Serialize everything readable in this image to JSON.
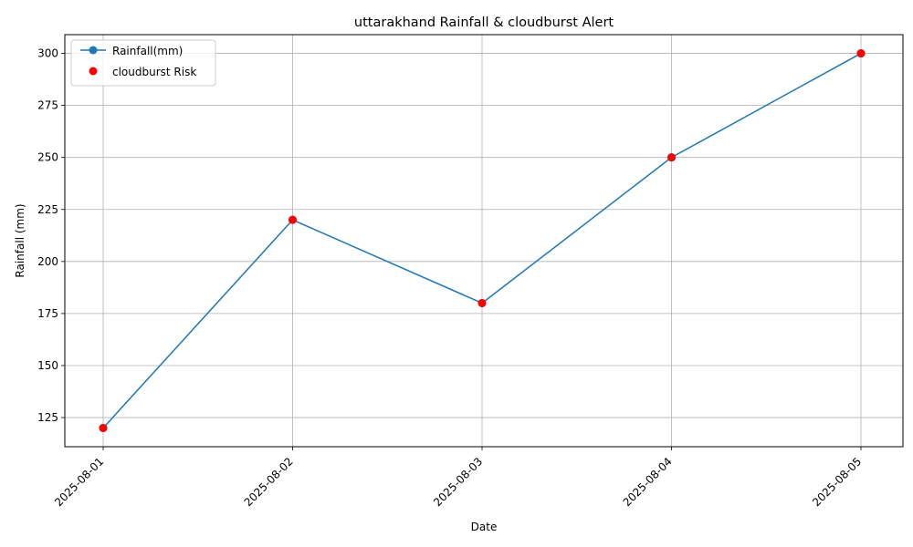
{
  "chart_data": {
    "type": "line",
    "title": "uttarakhand Rainfall & cloudburst Alert",
    "xlabel": "Date",
    "ylabel": "Rainfall (mm)",
    "categories": [
      "2025-08-01",
      "2025-08-02",
      "2025-08-03",
      "2025-08-04",
      "2025-08-05"
    ],
    "yticks": [
      125,
      150,
      175,
      200,
      225,
      250,
      275,
      300
    ],
    "ylim": [
      111,
      309
    ],
    "grid": true,
    "legend_position": "top-left",
    "series": [
      {
        "name": "Rainfall(mm)",
        "kind": "line",
        "marker": "circle",
        "color": "#1f77b4",
        "values": [
          120,
          220,
          180,
          250,
          300
        ]
      },
      {
        "name": "cloudburst Risk",
        "kind": "scatter",
        "marker": "circle",
        "color": "#ff0000",
        "values": [
          120,
          220,
          180,
          250,
          300
        ]
      }
    ]
  }
}
